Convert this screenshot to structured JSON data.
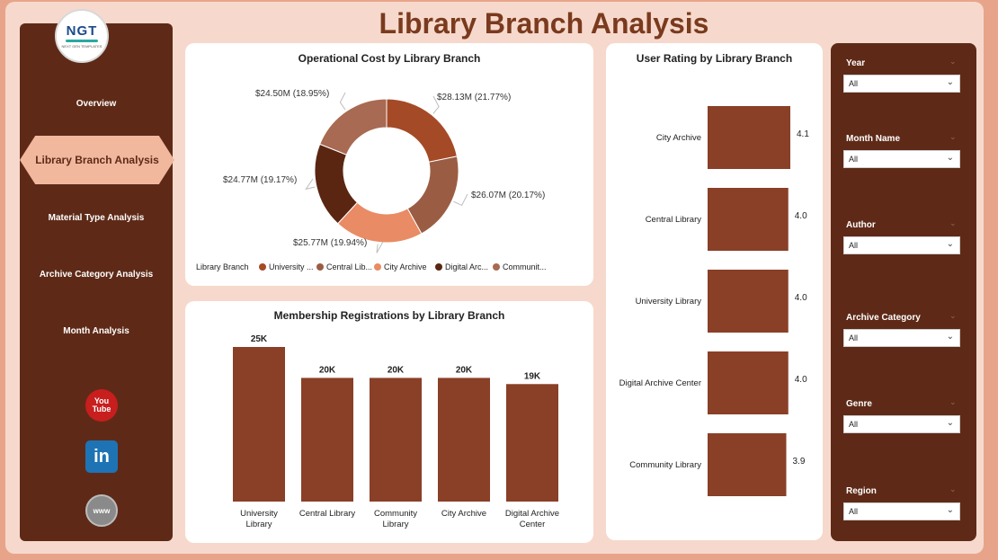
{
  "page": {
    "title": "Library Branch Analysis"
  },
  "logo": {
    "text": "NGT",
    "subtitle": "NEXT GEN TEMPLATES"
  },
  "nav": {
    "items": [
      {
        "label": "Overview",
        "active": false
      },
      {
        "label": "Library Branch Analysis",
        "active": true
      },
      {
        "label": "Material Type Analysis",
        "active": false
      },
      {
        "label": "Archive Category Analysis",
        "active": false
      },
      {
        "label": "Month Analysis",
        "active": false
      }
    ]
  },
  "social": {
    "youtube_top": "You",
    "youtube_bottom": "Tube",
    "linkedin": "in",
    "web": "www"
  },
  "colors": {
    "dark_brown": "#5e2a17",
    "accent": "#f2b89e",
    "bar": "#8a3f27"
  },
  "chart_data": [
    {
      "type": "pie",
      "title": "Operational Cost by Library Branch",
      "legend_title": "Library Branch",
      "legend_placement": "bottom",
      "slices": [
        {
          "name": "University ...",
          "value": 28.13,
          "label": "$28.13M (21.77%)",
          "color": "#a54a26"
        },
        {
          "name": "Central Lib...",
          "value": 26.07,
          "label": "$26.07M (20.17%)",
          "color": "#9a5d44"
        },
        {
          "name": "City Archive",
          "value": 25.77,
          "label": "$25.77M (19.94%)",
          "color": "#e98b64"
        },
        {
          "name": "Digital Arc...",
          "value": 24.77,
          "label": "$24.77M (19.17%)",
          "color": "#5a2612"
        },
        {
          "name": "Communit...",
          "value": 24.5,
          "label": "$24.50M (18.95%)",
          "color": "#a86a52"
        }
      ]
    },
    {
      "type": "bar",
      "orientation": "horizontal",
      "title": "User Rating by Library Branch",
      "categories": [
        "City Archive",
        "Central Library",
        "University Library",
        "Digital Archive Center",
        "Community Library"
      ],
      "values": [
        4.1,
        4.0,
        4.0,
        4.0,
        3.9
      ],
      "labels": [
        "4.1",
        "4.0",
        "4.0",
        "4.0",
        "3.9"
      ],
      "grid": false
    },
    {
      "type": "bar",
      "orientation": "vertical",
      "title": "Membership Registrations by Library Branch",
      "categories": [
        [
          "University",
          "Library"
        ],
        [
          "Central Library"
        ],
        [
          "Community",
          "Library"
        ],
        [
          "City Archive"
        ],
        [
          "Digital Archive",
          "Center"
        ]
      ],
      "values": [
        25000,
        20000,
        20000,
        20000,
        19000
      ],
      "labels": [
        "25K",
        "20K",
        "20K",
        "20K",
        "19K"
      ],
      "grid": false
    }
  ],
  "filters": [
    {
      "label": "Year",
      "value": "All"
    },
    {
      "label": "Month Name",
      "value": "All"
    },
    {
      "label": "Author",
      "value": "All"
    },
    {
      "label": "Archive Category",
      "value": "All"
    },
    {
      "label": "Genre",
      "value": "All"
    },
    {
      "label": "Region",
      "value": "All"
    }
  ]
}
